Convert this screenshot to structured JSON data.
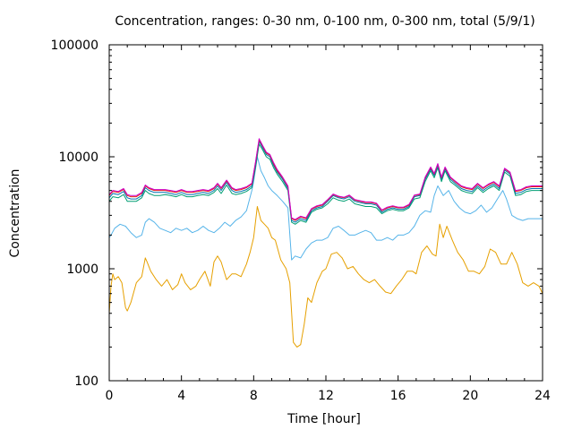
{
  "chart_data": {
    "type": "line",
    "title": "Concentration, ranges: 0-30 nm, 0-100 nm, 0-300 nm, total (5/9/1)",
    "xlabel": "Time [hour]",
    "ylabel": "Concentration",
    "xlim": [
      0,
      24
    ],
    "ylim": [
      100,
      100000
    ],
    "yscale": "log",
    "xticks": [
      0,
      4,
      8,
      12,
      16,
      20,
      24
    ],
    "xtick_labels": [
      "0",
      "4",
      "8",
      "12",
      "16",
      "20",
      "24"
    ],
    "yticks": [
      100,
      1000,
      10000,
      100000
    ],
    "ytick_labels": [
      "100",
      "1000",
      "10000",
      "100000"
    ],
    "grid": false,
    "series": [
      {
        "color": "#e6a000",
        "x": [
          0,
          0.1,
          0.2,
          0.3,
          0.5,
          0.7,
          0.9,
          1.0,
          1.2,
          1.5,
          1.8,
          2.0,
          2.1,
          2.3,
          2.6,
          2.9,
          3.2,
          3.5,
          3.8,
          4.0,
          4.2,
          4.5,
          4.8,
          5.0,
          5.3,
          5.6,
          5.8,
          6.0,
          6.2,
          6.5,
          6.8,
          7.0,
          7.3,
          7.6,
          7.8,
          8.0,
          8.2,
          8.4,
          8.6,
          8.8,
          9.0,
          9.2,
          9.5,
          9.8,
          10.0,
          10.2,
          10.4,
          10.6,
          10.8,
          11.0,
          11.2,
          11.5,
          11.8,
          12.0,
          12.3,
          12.6,
          12.9,
          13.2,
          13.5,
          13.8,
          14.1,
          14.4,
          14.7,
          15.0,
          15.3,
          15.6,
          15.9,
          16.2,
          16.5,
          16.8,
          17.0,
          17.3,
          17.6,
          17.9,
          18.1,
          18.3,
          18.5,
          18.7,
          19.0,
          19.3,
          19.6,
          19.9,
          20.2,
          20.5,
          20.8,
          21.1,
          21.4,
          21.7,
          22.0,
          22.3,
          22.6,
          22.9,
          23.2,
          23.5,
          23.8,
          24
        ],
        "y": [
          400,
          700,
          900,
          800,
          850,
          750,
          450,
          420,
          500,
          750,
          850,
          1250,
          1150,
          950,
          800,
          700,
          800,
          650,
          720,
          900,
          750,
          650,
          700,
          800,
          950,
          700,
          1150,
          1300,
          1150,
          800,
          900,
          900,
          850,
          1100,
          1400,
          1900,
          3600,
          2700,
          2500,
          2300,
          1900,
          1800,
          1200,
          1000,
          750,
          220,
          200,
          210,
          320,
          550,
          500,
          750,
          950,
          1000,
          1350,
          1400,
          1250,
          1000,
          1050,
          900,
          800,
          750,
          800,
          700,
          620,
          600,
          700,
          800,
          950,
          950,
          900,
          1400,
          1600,
          1350,
          1300,
          2500,
          1900,
          2400,
          1800,
          1400,
          1200,
          950,
          950,
          900,
          1050,
          1500,
          1400,
          1100,
          1100,
          1400,
          1100,
          750,
          700,
          750,
          700,
          600
        ]
      },
      {
        "color": "#56b4e9",
        "x": [
          0,
          0.1,
          0.3,
          0.6,
          0.9,
          1.2,
          1.5,
          1.8,
          2.0,
          2.2,
          2.5,
          2.8,
          3.1,
          3.4,
          3.7,
          4.0,
          4.3,
          4.6,
          4.9,
          5.2,
          5.5,
          5.8,
          6.1,
          6.4,
          6.7,
          7.0,
          7.3,
          7.6,
          7.9,
          8.0,
          8.2,
          8.4,
          8.6,
          8.8,
          9.0,
          9.3,
          9.6,
          9.9,
          10.1,
          10.3,
          10.6,
          10.9,
          11.2,
          11.5,
          11.8,
          12.1,
          12.4,
          12.7,
          13.0,
          13.3,
          13.6,
          13.9,
          14.2,
          14.5,
          14.8,
          15.1,
          15.4,
          15.7,
          16.0,
          16.3,
          16.6,
          16.9,
          17.2,
          17.5,
          17.8,
          18.0,
          18.2,
          18.5,
          18.8,
          19.1,
          19.4,
          19.7,
          20.0,
          20.3,
          20.6,
          20.9,
          21.2,
          21.5,
          21.8,
          22.0,
          22.3,
          22.6,
          22.9,
          23.2,
          23.5,
          23.8,
          24
        ],
        "y": [
          1900,
          2000,
          2300,
          2500,
          2400,
          2100,
          1900,
          2000,
          2600,
          2800,
          2600,
          2300,
          2200,
          2100,
          2300,
          2200,
          2300,
          2100,
          2200,
          2400,
          2200,
          2100,
          2300,
          2600,
          2400,
          2700,
          2900,
          3300,
          5000,
          6000,
          10000,
          7500,
          6500,
          5500,
          5000,
          4500,
          4000,
          3500,
          1200,
          1300,
          1250,
          1500,
          1700,
          1800,
          1800,
          1900,
          2300,
          2400,
          2200,
          2000,
          2000,
          2100,
          2200,
          2100,
          1800,
          1800,
          1900,
          1800,
          2000,
          2000,
          2100,
          2400,
          3000,
          3300,
          3200,
          4500,
          5500,
          4500,
          5000,
          4000,
          3500,
          3200,
          3100,
          3300,
          3700,
          3200,
          3500,
          4200,
          5000,
          4200,
          3000,
          2800,
          2700,
          2800,
          2800,
          2800,
          2800
        ]
      },
      {
        "color": "#009e73",
        "x": [
          0,
          0.2,
          0.5,
          0.8,
          1.0,
          1.2,
          1.5,
          1.8,
          2.0,
          2.2,
          2.5,
          2.8,
          3.1,
          3.4,
          3.7,
          4.0,
          4.3,
          4.6,
          4.9,
          5.2,
          5.5,
          5.8,
          6.0,
          6.2,
          6.5,
          6.8,
          7.0,
          7.3,
          7.6,
          7.9,
          8.1,
          8.3,
          8.5,
          8.7,
          8.9,
          9.1,
          9.3,
          9.6,
          9.9,
          10.1,
          10.3,
          10.6,
          10.9,
          11.2,
          11.5,
          11.8,
          12.1,
          12.4,
          12.7,
          13.0,
          13.3,
          13.6,
          13.9,
          14.2,
          14.5,
          14.8,
          15.1,
          15.4,
          15.7,
          16.0,
          16.3,
          16.6,
          16.9,
          17.2,
          17.5,
          17.8,
          18.0,
          18.2,
          18.4,
          18.6,
          18.9,
          19.2,
          19.5,
          19.8,
          20.1,
          20.4,
          20.7,
          21.0,
          21.3,
          21.6,
          21.9,
          22.2,
          22.5,
          22.8,
          23.1,
          23.4,
          23.7,
          24
        ],
        "y": [
          4000,
          4400,
          4300,
          4600,
          4000,
          4000,
          4000,
          4300,
          5000,
          4700,
          4500,
          4500,
          4600,
          4500,
          4400,
          4600,
          4400,
          4400,
          4500,
          4600,
          4500,
          4800,
          5200,
          4700,
          5600,
          4700,
          4600,
          4700,
          4900,
          5300,
          8000,
          13000,
          11500,
          10000,
          9500,
          8000,
          7000,
          6000,
          5000,
          2600,
          2500,
          2700,
          2600,
          3200,
          3400,
          3500,
          3800,
          4300,
          4100,
          4000,
          4200,
          3800,
          3700,
          3600,
          3600,
          3500,
          3100,
          3300,
          3400,
          3300,
          3300,
          3500,
          4200,
          4300,
          6000,
          7500,
          6500,
          8000,
          6000,
          7500,
          6000,
          5500,
          5000,
          4800,
          4700,
          5300,
          4800,
          5200,
          5500,
          5000,
          7300,
          6700,
          4500,
          4600,
          4900,
          5000,
          5000,
          5000
        ]
      },
      {
        "color": "#0072b2",
        "x": [
          0,
          0.2,
          0.5,
          0.8,
          1.0,
          1.2,
          1.5,
          1.8,
          2.0,
          2.2,
          2.5,
          2.8,
          3.1,
          3.4,
          3.7,
          4.0,
          4.3,
          4.6,
          4.9,
          5.2,
          5.5,
          5.8,
          6.0,
          6.2,
          6.5,
          6.8,
          7.0,
          7.3,
          7.6,
          7.9,
          8.1,
          8.3,
          8.5,
          8.7,
          8.9,
          9.1,
          9.3,
          9.6,
          9.9,
          10.1,
          10.3,
          10.6,
          10.9,
          11.2,
          11.5,
          11.8,
          12.1,
          12.4,
          12.7,
          13.0,
          13.3,
          13.6,
          13.9,
          14.2,
          14.5,
          14.8,
          15.1,
          15.4,
          15.7,
          16.0,
          16.3,
          16.6,
          16.9,
          17.2,
          17.5,
          17.8,
          18.0,
          18.2,
          18.4,
          18.6,
          18.9,
          19.2,
          19.5,
          19.8,
          20.1,
          20.4,
          20.7,
          21.0,
          21.3,
          21.6,
          21.9,
          22.2,
          22.5,
          22.8,
          23.1,
          23.4,
          23.7,
          24
        ],
        "y": [
          4300,
          4700,
          4600,
          4900,
          4300,
          4200,
          4200,
          4500,
          5300,
          5000,
          4800,
          4800,
          4800,
          4700,
          4600,
          4800,
          4600,
          4600,
          4700,
          4800,
          4700,
          5000,
          5500,
          5000,
          5900,
          5000,
          4800,
          4900,
          5100,
          5500,
          8500,
          13800,
          12000,
          10500,
          10000,
          8400,
          7300,
          6300,
          5200,
          2700,
          2600,
          2800,
          2700,
          3300,
          3500,
          3600,
          4000,
          4500,
          4300,
          4200,
          4400,
          4000,
          3900,
          3800,
          3800,
          3700,
          3200,
          3400,
          3500,
          3400,
          3400,
          3600,
          4400,
          4500,
          6300,
          7800,
          6800,
          8400,
          6300,
          7800,
          6300,
          5700,
          5200,
          5000,
          4900,
          5500,
          5000,
          5400,
          5700,
          5200,
          7600,
          7000,
          4700,
          4800,
          5100,
          5200,
          5200,
          5200
        ]
      },
      {
        "color": "#e51e10",
        "x": [
          0,
          0.2,
          0.5,
          0.8,
          1.0,
          1.2,
          1.5,
          1.8,
          2.0,
          2.2,
          2.5,
          2.8,
          3.1,
          3.4,
          3.7,
          4.0,
          4.3,
          4.6,
          4.9,
          5.2,
          5.5,
          5.8,
          6.0,
          6.2,
          6.5,
          6.8,
          7.0,
          7.3,
          7.6,
          7.9,
          8.1,
          8.3,
          8.5,
          8.7,
          8.9,
          9.1,
          9.3,
          9.6,
          9.9,
          10.1,
          10.3,
          10.6,
          10.9,
          11.2,
          11.5,
          11.8,
          12.1,
          12.4,
          12.7,
          13.0,
          13.3,
          13.6,
          13.9,
          14.2,
          14.5,
          14.8,
          15.1,
          15.4,
          15.7,
          16.0,
          16.3,
          16.6,
          16.9,
          17.2,
          17.5,
          17.8,
          18.0,
          18.2,
          18.4,
          18.6,
          18.9,
          19.2,
          19.5,
          19.8,
          20.1,
          20.4,
          20.7,
          21.0,
          21.3,
          21.6,
          21.9,
          22.2,
          22.5,
          22.8,
          23.1,
          23.4,
          23.7,
          24
        ],
        "y": [
          4500,
          4900,
          4800,
          5100,
          4500,
          4400,
          4400,
          4700,
          5500,
          5200,
          5000,
          5000,
          5000,
          4900,
          4800,
          5000,
          4800,
          4800,
          4900,
          5000,
          4900,
          5200,
          5700,
          5200,
          6100,
          5200,
          5000,
          5100,
          5300,
          5700,
          8800,
          14200,
          12400,
          10800,
          10300,
          8700,
          7500,
          6500,
          5400,
          2800,
          2700,
          2900,
          2800,
          3400,
          3600,
          3700,
          4100,
          4600,
          4400,
          4300,
          4500,
          4100,
          4000,
          3900,
          3900,
          3800,
          3300,
          3500,
          3600,
          3500,
          3500,
          3700,
          4500,
          4600,
          6500,
          8000,
          7000,
          8600,
          6500,
          8000,
          6500,
          5900,
          5400,
          5200,
          5100,
          5700,
          5200,
          5600,
          5900,
          5400,
          7800,
          7200,
          4900,
          5000,
          5300,
          5400,
          5400,
          5400
        ]
      },
      {
        "color": "#cc00cc",
        "x": [
          0,
          0.2,
          0.5,
          0.8,
          1.0,
          1.2,
          1.5,
          1.8,
          2.0,
          2.2,
          2.5,
          2.8,
          3.1,
          3.4,
          3.7,
          4.0,
          4.3,
          4.6,
          4.9,
          5.2,
          5.5,
          5.8,
          6.0,
          6.2,
          6.5,
          6.8,
          7.0,
          7.3,
          7.6,
          7.9,
          8.1,
          8.3,
          8.5,
          8.7,
          8.9,
          9.1,
          9.3,
          9.6,
          9.9,
          10.1,
          10.3,
          10.6,
          10.9,
          11.2,
          11.5,
          11.8,
          12.1,
          12.4,
          12.7,
          13.0,
          13.3,
          13.6,
          13.9,
          14.2,
          14.5,
          14.8,
          15.1,
          15.4,
          15.7,
          16.0,
          16.3,
          16.6,
          16.9,
          17.2,
          17.5,
          17.8,
          18.0,
          18.2,
          18.4,
          18.6,
          18.9,
          19.2,
          19.5,
          19.8,
          20.1,
          20.4,
          20.7,
          21.0,
          21.3,
          21.6,
          21.9,
          22.2,
          22.5,
          22.8,
          23.1,
          23.4,
          23.7,
          24
        ],
        "y": [
          4600,
          5000,
          4900,
          5200,
          4600,
          4500,
          4500,
          4800,
          5600,
          5300,
          5100,
          5100,
          5100,
          5000,
          4900,
          5100,
          4900,
          4900,
          5000,
          5100,
          5000,
          5300,
          5800,
          5300,
          6200,
          5300,
          5100,
          5200,
          5400,
          5800,
          9000,
          14500,
          12600,
          11000,
          10500,
          8900,
          7700,
          6600,
          5500,
          2850,
          2750,
          2950,
          2850,
          3450,
          3650,
          3750,
          4150,
          4650,
          4450,
          4350,
          4550,
          4150,
          4050,
          3950,
          3950,
          3850,
          3350,
          3550,
          3650,
          3550,
          3550,
          3750,
          4550,
          4650,
          6600,
          8100,
          7100,
          8700,
          6600,
          8100,
          6600,
          6000,
          5500,
          5300,
          5200,
          5800,
          5300,
          5700,
          6000,
          5500,
          7900,
          7300,
          5000,
          5100,
          5400,
          5500,
          5500,
          5500
        ]
      }
    ]
  }
}
